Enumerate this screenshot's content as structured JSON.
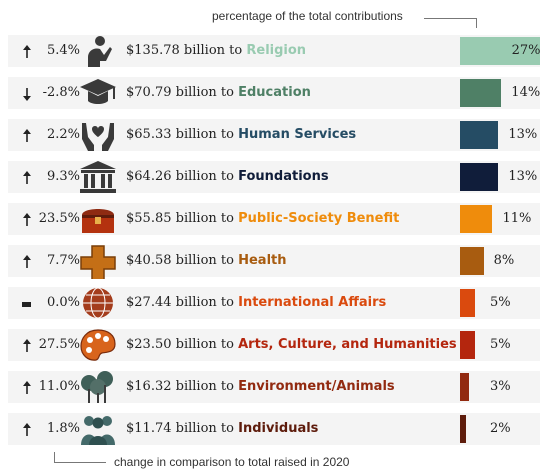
{
  "annotations": {
    "top": "percentage of the total contributions",
    "bottom": "change in comparison to total raised in 2020"
  },
  "chart_data": {
    "type": "bar",
    "orientation": "horizontal",
    "categories": [
      "Religion",
      "Education",
      "Human Services",
      "Foundations",
      "Public-Society Benefit",
      "Health",
      "International Affairs",
      "Arts, Culture, and Humanities",
      "Environment/Animals",
      "Individuals"
    ],
    "amounts": [
      "$135.78 billion",
      "$70.79 billion",
      "$65.33 billion",
      "$64.26 billion",
      "$55.85 billion",
      "$40.58 billion",
      "$27.44 billion",
      "$23.50 billion",
      "$16.32 billion",
      "$11.74 billion"
    ],
    "amount_values": [
      135.78,
      70.79,
      65.33,
      64.26,
      55.85,
      40.58,
      27.44,
      23.5,
      16.32,
      11.74
    ],
    "share_labels": [
      "27%",
      "14%",
      "13%",
      "13%",
      "11%",
      "8%",
      "5%",
      "5%",
      "3%",
      "2%"
    ],
    "shares": [
      27,
      14,
      13,
      13,
      11,
      8,
      5,
      5,
      3,
      2
    ],
    "change_labels": [
      "5.4%",
      "-2.8%",
      "2.2%",
      "9.3%",
      "23.5%",
      "7.7%",
      "0.0%",
      "27.5%",
      "11.0%",
      "1.8%"
    ],
    "changes": [
      5.4,
      -2.8,
      2.2,
      9.3,
      23.5,
      7.7,
      0.0,
      27.5,
      11.0,
      1.8
    ],
    "colors": [
      "#99cbb1",
      "#4f8066",
      "#254c64",
      "#101d3a",
      "#ef8c0c",
      "#a85c10",
      "#da4a0e",
      "#b4260e",
      "#922a10",
      "#5e1c0c"
    ],
    "icons": [
      "praying-person-icon",
      "graduation-cap-icon",
      "hands-heart-icon",
      "institution-building-icon",
      "treasure-chest-icon",
      "medical-cross-icon",
      "globe-icon",
      "paint-palette-icon",
      "trees-icon",
      "people-group-icon"
    ],
    "connector": "billion to"
  }
}
